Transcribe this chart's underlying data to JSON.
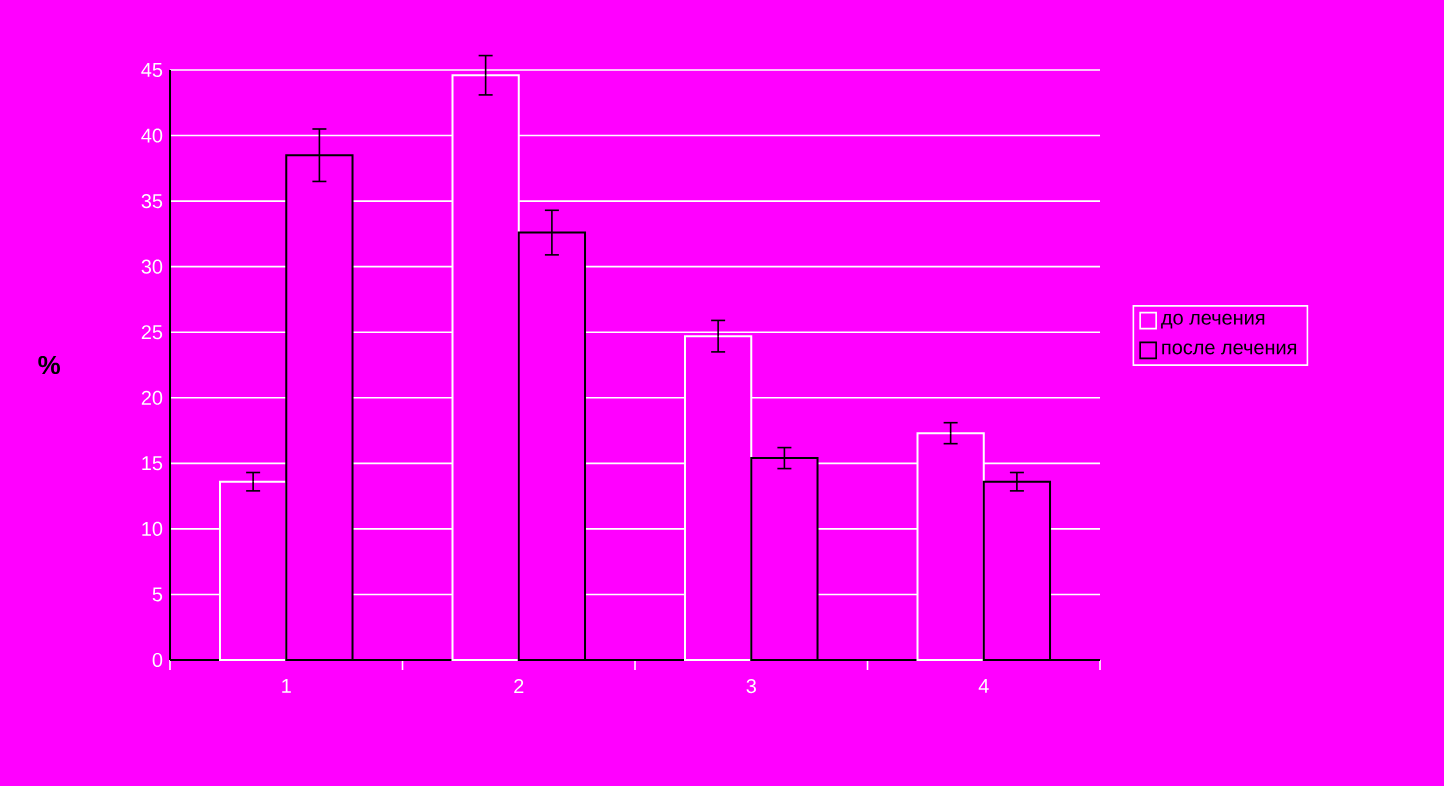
{
  "chart_data": {
    "type": "bar",
    "ylabel": "%",
    "categories": [
      "1",
      "2",
      "3",
      "4"
    ],
    "series": [
      {
        "name": "до лечения",
        "color": "#ffffff",
        "values": [
          13.6,
          44.6,
          24.7,
          17.3
        ],
        "errors": [
          0.7,
          1.5,
          1.2,
          0.8
        ]
      },
      {
        "name": "после лечения",
        "color": "#000000",
        "values": [
          38.5,
          32.6,
          15.4,
          13.6
        ],
        "errors": [
          2.0,
          1.7,
          0.8,
          0.7
        ]
      }
    ],
    "ylim": [
      0,
      45
    ],
    "yticks": [
      0,
      5,
      10,
      15,
      20,
      25,
      30,
      35,
      40,
      45
    ],
    "grid": "y",
    "legend": "right"
  }
}
